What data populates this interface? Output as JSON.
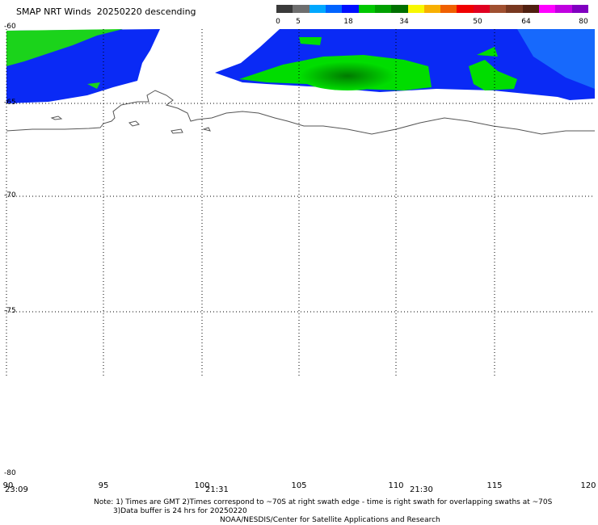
{
  "title": "SMAP NRT Winds  20250220 descending",
  "colorbar": {
    "labels": [
      "0",
      "5",
      "18",
      "34",
      "50",
      "64",
      "80"
    ],
    "colors": [
      "#3a3a3a",
      "#6e6e6e",
      "#00a8ff",
      "#0064ff",
      "#0010ff",
      "#00c800",
      "#00a000",
      "#007000",
      "#f8f800",
      "#f8b000",
      "#f06000",
      "#f00000",
      "#e00020",
      "#a05030",
      "#783820",
      "#502010",
      "#ff00ff",
      "#c000e0",
      "#8000c0"
    ]
  },
  "axes": {
    "lat_labels": [
      "-60",
      "-65",
      "-70",
      "-75",
      "-80"
    ],
    "lon_labels": [
      "90",
      "95",
      "100",
      "105",
      "110",
      "115",
      "120"
    ],
    "time_labels": [
      "23:09",
      "21:31",
      "21:30"
    ]
  },
  "colors": {
    "ocean_blue": "#0a2af5",
    "wind_green": "#00e000",
    "wind_dark_green": "#008a00",
    "coast": "#555555",
    "grid": "#000000"
  },
  "notes": {
    "line1": "Note: 1) Times are GMT 2)Times correspond to ~70S at right swath edge - time is right swath for overlapping swaths at ~70S",
    "line2": "3)Data buffer is 24 hrs for 20250220",
    "line3": "NOAA/NESDIS/Center for Satellite Applications and Research"
  }
}
